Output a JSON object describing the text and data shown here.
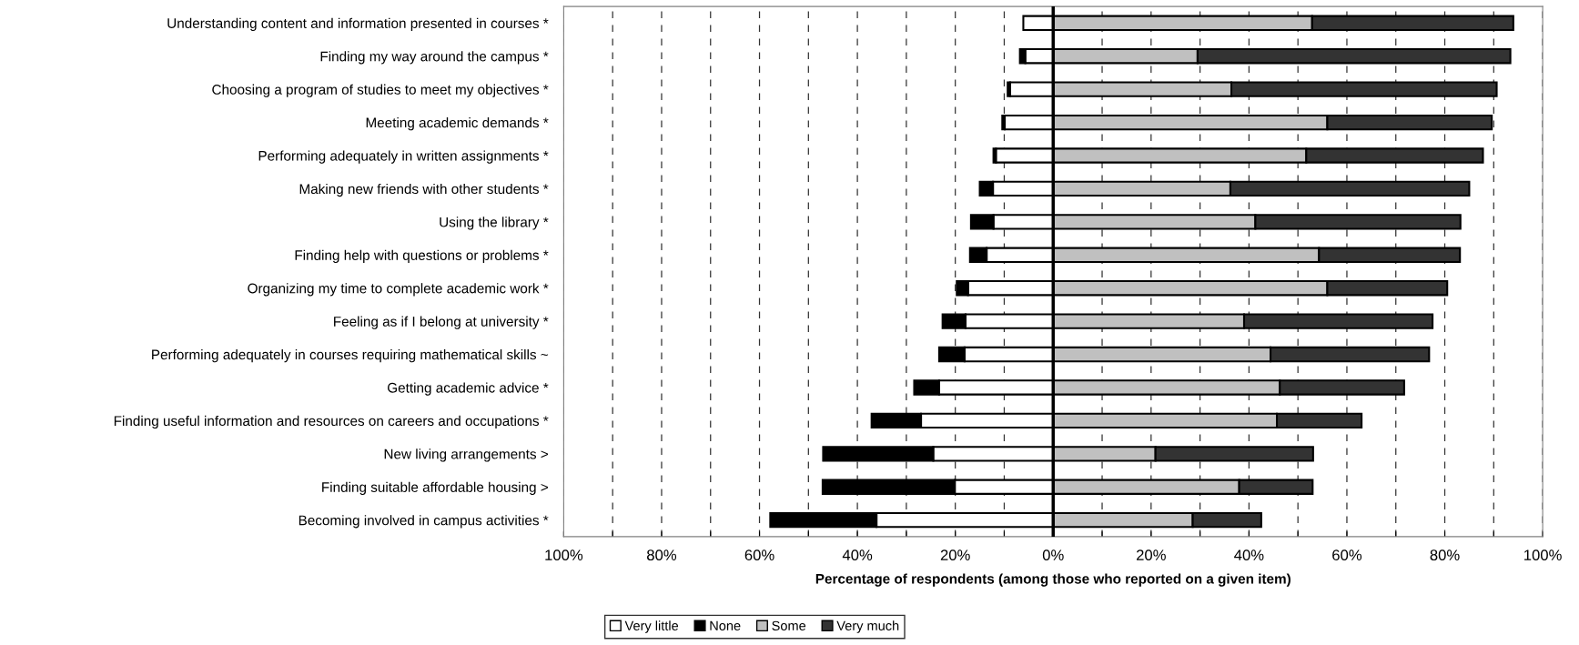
{
  "chart_data": {
    "type": "bar",
    "orientation": "horizontal",
    "stacked": true,
    "xlabel": "Percentage of respondents (among those who reported on a given item)",
    "categories": [
      "Understanding content and information presented in courses *",
      "Finding my way around the campus *",
      "Choosing a program of studies to meet my objectives *",
      "Meeting academic demands *",
      "Performing adequately in written assignments *",
      "Making new friends with other students *",
      "Using the library *",
      "Finding help with questions or problems *",
      "Organizing my time to complete academic work *",
      "Feeling as if I belong at university *",
      "Performing adequately in courses requiring mathematical skills ~",
      "Getting academic advice *",
      "Finding useful information and resources on careers and occupations *",
      "New living arrangements >",
      "Finding suitable affordable housing >",
      "Becoming involved in campus activities *"
    ],
    "series": [
      {
        "name": "Very little",
        "color": "#ffffff",
        "values": [
          -6.1,
          -5.7,
          -8.8,
          -9.9,
          -11.7,
          -12.3,
          -12.2,
          -13.6,
          -17.4,
          -17.9,
          -18.1,
          -23.3,
          -27.0,
          -24.5,
          -20.1,
          -36.1
        ]
      },
      {
        "name": "None",
        "color": "#000000",
        "values": [
          0,
          -1.1,
          -0.5,
          -0.5,
          -0.5,
          -2.7,
          -4.6,
          -3.4,
          -2.3,
          -4.7,
          -5.2,
          -5.1,
          -10.1,
          -22.5,
          -27.0,
          -21.7
        ]
      },
      {
        "name": "Some",
        "color": "#c0c0c0",
        "values": [
          52.9,
          29.5,
          36.4,
          56.0,
          51.7,
          36.2,
          41.3,
          54.3,
          56.0,
          39.0,
          44.4,
          46.3,
          45.7,
          20.9,
          38.0,
          28.5
        ]
      },
      {
        "name": "Very much",
        "color": "#333333",
        "values": [
          41.1,
          63.9,
          54.2,
          33.6,
          36.1,
          48.8,
          41.9,
          28.8,
          24.5,
          38.5,
          32.4,
          25.4,
          17.3,
          32.2,
          15.0,
          14.0
        ]
      }
    ],
    "xlim": [
      -100,
      100
    ],
    "xticks": [
      {
        "value": -100,
        "label": "100%"
      },
      {
        "value": -90,
        "label": null
      },
      {
        "value": -80,
        "label": "80%"
      },
      {
        "value": -70,
        "label": null
      },
      {
        "value": -60,
        "label": "60%"
      },
      {
        "value": -50,
        "label": null
      },
      {
        "value": -40,
        "label": "40%"
      },
      {
        "value": -30,
        "label": null
      },
      {
        "value": -20,
        "label": "20%"
      },
      {
        "value": -10,
        "label": null
      },
      {
        "value": 0,
        "label": "0%"
      },
      {
        "value": 10,
        "label": null
      },
      {
        "value": 20,
        "label": "20%"
      },
      {
        "value": 30,
        "label": null
      },
      {
        "value": 40,
        "label": "40%"
      },
      {
        "value": 50,
        "label": null
      },
      {
        "value": 60,
        "label": "60%"
      },
      {
        "value": 70,
        "label": null
      },
      {
        "value": 80,
        "label": "80%"
      },
      {
        "value": 90,
        "label": null
      },
      {
        "value": 100,
        "label": "100%"
      }
    ],
    "grid": "x",
    "legend": "bottom"
  }
}
